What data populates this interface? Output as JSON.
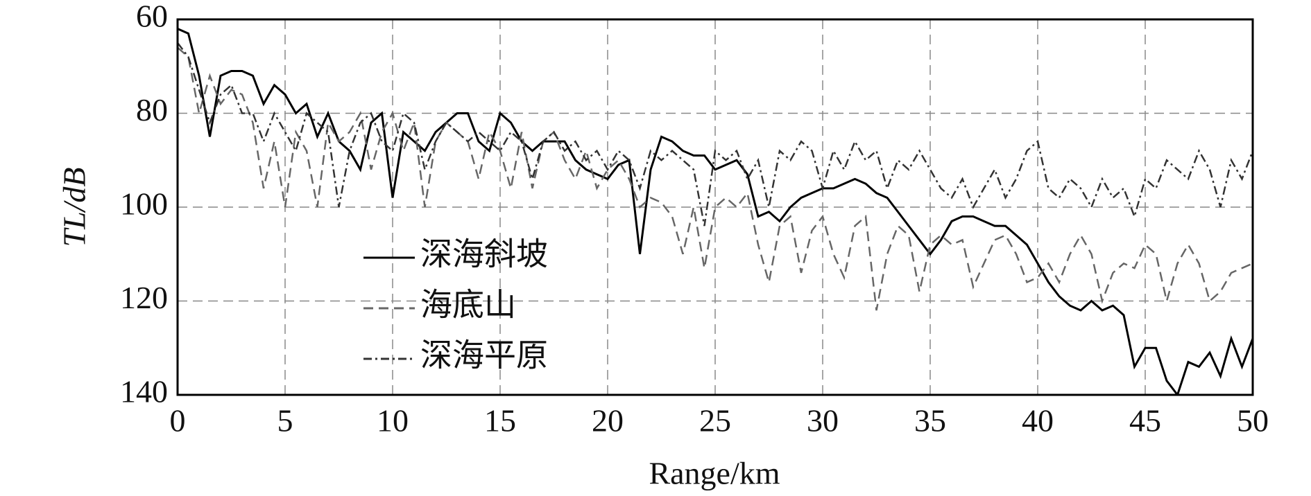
{
  "chart_data": {
    "type": "line",
    "xlabel": "Range/km",
    "ylabel": "TL/dB",
    "xlim": [
      0,
      50
    ],
    "ylim": [
      60,
      140
    ],
    "y_inverted": true,
    "xticks": [
      0,
      5,
      10,
      15,
      20,
      25,
      30,
      35,
      40,
      45,
      50
    ],
    "yticks": [
      60,
      80,
      100,
      120,
      140
    ],
    "grid": true,
    "legend": "center left",
    "x": [
      0,
      0.5,
      1,
      1.5,
      2,
      2.5,
      3,
      3.5,
      4,
      4.5,
      5,
      5.5,
      6,
      6.5,
      7,
      7.5,
      8,
      8.5,
      9,
      9.5,
      10,
      10.5,
      11,
      11.5,
      12,
      12.5,
      13,
      13.5,
      14,
      14.5,
      15,
      15.5,
      16,
      16.5,
      17,
      17.5,
      18,
      18.5,
      19,
      19.5,
      20,
      20.5,
      21,
      21.5,
      22,
      22.5,
      23,
      23.5,
      24,
      24.5,
      25,
      25.5,
      26,
      26.5,
      27,
      27.5,
      28,
      28.5,
      29,
      29.5,
      30,
      30.5,
      31,
      31.5,
      32,
      32.5,
      33,
      33.5,
      34,
      34.5,
      35,
      35.5,
      36,
      36.5,
      37,
      37.5,
      38,
      38.5,
      39,
      39.5,
      40,
      40.5,
      41,
      41.5,
      42,
      42.5,
      43,
      43.5,
      44,
      44.5,
      45,
      45.5,
      46,
      46.5,
      47,
      47.5,
      48,
      48.5,
      49,
      49.5,
      50
    ],
    "series": [
      {
        "name": "深海斜坡",
        "color": "#000000",
        "dash": "solid",
        "values": [
          62,
          63,
          72,
          85,
          72,
          71,
          71,
          72,
          78,
          74,
          76,
          80,
          78,
          85,
          80,
          86,
          88,
          92,
          82,
          80,
          98,
          84,
          86,
          88,
          84,
          82,
          80,
          80,
          86,
          88,
          80,
          82,
          86,
          88,
          86,
          86,
          86,
          90,
          92,
          93,
          94,
          91,
          90,
          110,
          92,
          85,
          86,
          88,
          89,
          89,
          92,
          91,
          90,
          93,
          102,
          101,
          103,
          100,
          98,
          97,
          96,
          96,
          95,
          94,
          95,
          97,
          98,
          101,
          104,
          107,
          110,
          107,
          103,
          102,
          102,
          103,
          104,
          104,
          106,
          108,
          112,
          116,
          119,
          121,
          122,
          120,
          122,
          121,
          123,
          134,
          130,
          130,
          137,
          140,
          133,
          134,
          131,
          136,
          128,
          134,
          128
        ]
      },
      {
        "name": "海底山",
        "color": "#666666",
        "dash": "dashed",
        "values": [
          66,
          68,
          80,
          72,
          78,
          75,
          76,
          82,
          96,
          86,
          100,
          84,
          88,
          100,
          82,
          86,
          84,
          80,
          92,
          84,
          80,
          88,
          82,
          100,
          86,
          82,
          84,
          86,
          94,
          84,
          88,
          96,
          84,
          96,
          86,
          84,
          90,
          94,
          88,
          96,
          92,
          90,
          94,
          100,
          98,
          99,
          102,
          110,
          100,
          113,
          100,
          98,
          100,
          97,
          108,
          116,
          104,
          102,
          114,
          105,
          102,
          110,
          115,
          104,
          102,
          122,
          110,
          104,
          106,
          118,
          108,
          106,
          108,
          107,
          117,
          112,
          107,
          106,
          110,
          116,
          115,
          112,
          116,
          110,
          106,
          110,
          120,
          114,
          112,
          113,
          108,
          110,
          120,
          112,
          108,
          112,
          120,
          118,
          114,
          113,
          112
        ]
      },
      {
        "name": "深海平原",
        "color": "#333333",
        "dash": "dashdot",
        "values": [
          65,
          68,
          75,
          82,
          76,
          74,
          80,
          80,
          86,
          80,
          84,
          88,
          80,
          82,
          84,
          100,
          88,
          82,
          80,
          86,
          88,
          80,
          82,
          92,
          86,
          82,
          84,
          86,
          84,
          86,
          88,
          84,
          86,
          94,
          86,
          84,
          88,
          86,
          90,
          88,
          92,
          88,
          90,
          96,
          88,
          90,
          88,
          90,
          92,
          104,
          88,
          90,
          88,
          94,
          90,
          100,
          88,
          90,
          86,
          88,
          96,
          88,
          92,
          86,
          90,
          88,
          96,
          90,
          92,
          88,
          92,
          96,
          98,
          94,
          100,
          96,
          92,
          98,
          94,
          88,
          86,
          96,
          98,
          94,
          96,
          100,
          94,
          98,
          96,
          102,
          94,
          96,
          90,
          92,
          94,
          88,
          92,
          100,
          90,
          94,
          88
        ]
      }
    ]
  }
}
